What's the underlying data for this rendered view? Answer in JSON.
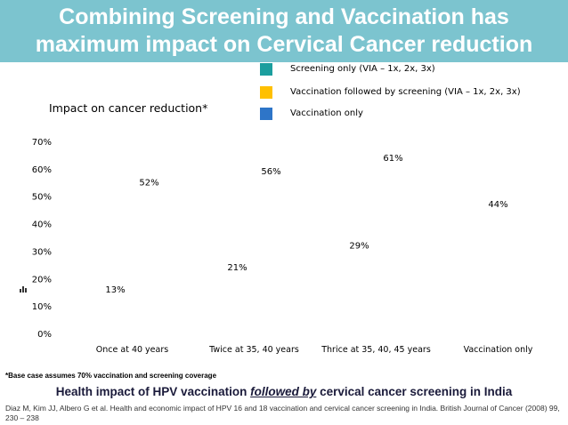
{
  "header": {
    "title_line1": "Combining Screening and Vaccination has",
    "title_line2": "maximum impact on Cervical Cancer reduction"
  },
  "legend": [
    {
      "label": "Screening only (VIA – 1x, 2x, 3x)",
      "color": "#1b9e9e"
    },
    {
      "label": "Vaccination followed by screening (VIA – 1x, 2x, 3x)",
      "color": "#ffc000"
    },
    {
      "label": "Vaccination only",
      "color": "#2e75c8"
    }
  ],
  "chart_data": {
    "type": "bar",
    "title": "Impact on cancer reduction*",
    "categories": [
      "Once at 40 years",
      "Twice at 35, 40 years",
      "Thrice at 35, 40, 45 years",
      "Vaccination only"
    ],
    "series": [
      {
        "name": "Screening only (VIA – 1x, 2x, 3x)",
        "values": [
          13,
          21,
          29,
          null
        ]
      },
      {
        "name": "Vaccination followed by screening (VIA – 1x, 2x, 3x)",
        "values": [
          52,
          56,
          61,
          null
        ]
      },
      {
        "name": "Vaccination only",
        "values": [
          null,
          null,
          null,
          44
        ]
      }
    ],
    "data_labels": [
      [
        "13%",
        "21%",
        "29%",
        ""
      ],
      [
        "52%",
        "56%",
        "61%",
        ""
      ],
      [
        "",
        "",
        "",
        "44%"
      ]
    ],
    "yticks": [
      "0%",
      "10%",
      "20%",
      "30%",
      "40%",
      "50%",
      "60%",
      "70%"
    ],
    "ylim": [
      0,
      70
    ],
    "grid": false,
    "legend_position": "top-right"
  },
  "footnote": "*Base case assumes 70% vaccination and screening coverage",
  "subtitle": {
    "before": "Health impact of HPV vaccination ",
    "emphasis": "followed by",
    "after": " cervical cancer screening in India"
  },
  "citation": "Diaz M, Kim JJ, Albero G et al. Health and economic impact of HPV 16 and 18 vaccination and cervical cancer screening in India. British Journal of Cancer (2008) 99, 230 – 238",
  "icons": {
    "side": "chart-icon"
  }
}
